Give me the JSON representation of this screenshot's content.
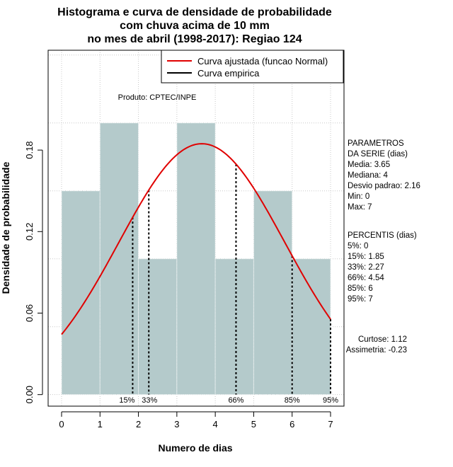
{
  "chart_data": {
    "type": "bar",
    "title_lines": [
      "Histograma e curva de densidade de probabilidade",
      "com chuva acima de 10 mm",
      "no mes de abril (1998-2017): Regiao 124"
    ],
    "xlabel": "Numero de dias",
    "ylabel": "Densidade de probabilidade",
    "xlim": [
      -0.35,
      7.35
    ],
    "ylim": [
      -0.0085,
      0.2535
    ],
    "x_ticks": [
      "0",
      "1",
      "2",
      "3",
      "4",
      "5",
      "6",
      "7"
    ],
    "y_ticks": [
      "0.00",
      "0.06",
      "0.12",
      "0.18"
    ],
    "bins": [
      {
        "start": 0,
        "end": 1,
        "density": 0.15
      },
      {
        "start": 1,
        "end": 2,
        "density": 0.2
      },
      {
        "start": 2,
        "end": 3,
        "density": 0.1
      },
      {
        "start": 3,
        "end": 4,
        "density": 0.2
      },
      {
        "start": 4,
        "end": 5,
        "density": 0.1
      },
      {
        "start": 5,
        "end": 6,
        "density": 0.15
      },
      {
        "start": 6,
        "end": 7,
        "density": 0.1
      }
    ],
    "normal_fit": {
      "mean": 3.65,
      "sd": 2.16,
      "x_from": 0,
      "x_to": 7
    },
    "percentile_lines": [
      {
        "label": "15%",
        "x": 1.85
      },
      {
        "label": "33%",
        "x": 2.27
      },
      {
        "label": "66%",
        "x": 4.54
      },
      {
        "label": "85%",
        "x": 6
      },
      {
        "label": "95%",
        "x": 7
      }
    ],
    "legend": {
      "placement": "top-right",
      "items": [
        {
          "name": "Curva ajustada (funcao Normal)",
          "color": "#e00000"
        },
        {
          "name": "Curva empirica",
          "color": "#000000"
        }
      ]
    },
    "credit": "Produto: CPTEC/INPE",
    "stats_block": [
      "PARAMETROS",
      "DA SERIE (dias)",
      "  Media: 3.65",
      "  Mediana: 4",
      "  Desvio padrao: 2.16",
      "  Min: 0",
      "  Max: 7"
    ],
    "percentiles_block": [
      "PERCENTIS (dias)",
      "   5%: 0",
      "   15%: 1.85",
      "   33%: 2.27",
      "   66%: 4.54",
      "   85%: 6",
      "   95%: 7"
    ],
    "shape_block": [
      "Curtose: 1.12",
      "Assimetria: -0.23"
    ],
    "grid": true,
    "colors": {
      "bar_fill": "#b4cacb",
      "curve": "#e00000",
      "grid": "#c8c8c8"
    }
  }
}
